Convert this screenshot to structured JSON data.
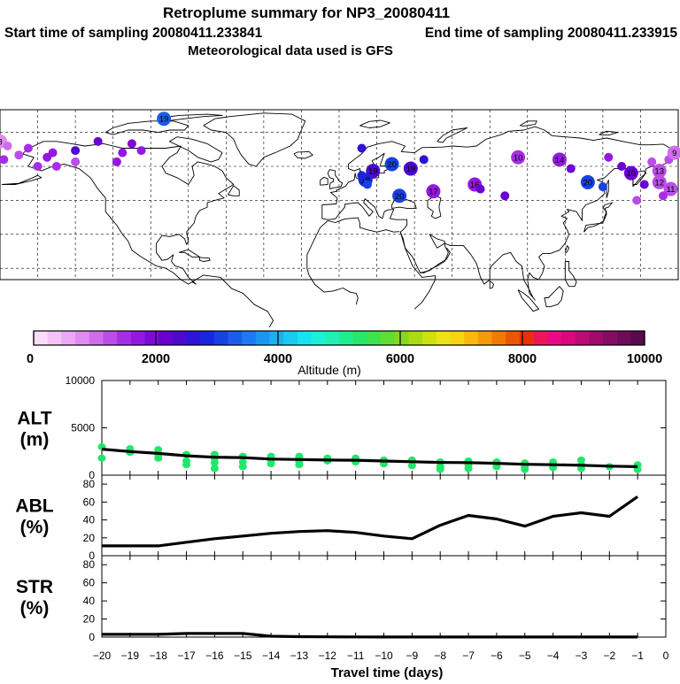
{
  "header": {
    "title": "Retroplume summary for NP3_20080411",
    "start_label": "Start time of sampling 20080411.233841",
    "end_label": "End time of sampling 20080411.233915",
    "met_label": "Meteorological data used is GFS"
  },
  "colors": {
    "text": "#000000",
    "water": "#ffffff",
    "alt_markers": "#22e66a",
    "curve": "#000000"
  },
  "colorbar": {
    "xlabel": "Altitude (m)",
    "ticks": [
      "0",
      "2000",
      "4000",
      "6000",
      "8000",
      "10000"
    ],
    "range": [
      0,
      10000
    ],
    "colors": [
      "#fbdcfb",
      "#f5c2f7",
      "#eba8f3",
      "#df8cf0",
      "#cf6deb",
      "#bb4de8",
      "#a72ee5",
      "#9518e2",
      "#7e0ad8",
      "#6a00d0",
      "#4c0ad0",
      "#2d14d6",
      "#1a26de",
      "#1741e2",
      "#1b5cec",
      "#1d7af2",
      "#1d95f3",
      "#1ab1f2",
      "#18cbf1",
      "#18e3ef",
      "#1cf0d8",
      "#20f0b6",
      "#22ec90",
      "#26e86b",
      "#3ee24c",
      "#60dd32",
      "#86d81e",
      "#aadb14",
      "#cee10f",
      "#ece416",
      "#f8d514",
      "#f8b80e",
      "#f59a09",
      "#f17a06",
      "#ec5704",
      "#e93108",
      "#ec1758",
      "#ea0a85",
      "#d8097e",
      "#be0a76",
      "#a00a6c",
      "#850b63",
      "#6e0b57",
      "#5a094b"
    ]
  },
  "map": {
    "markers": [
      {
        "lon": -93,
        "lat": 81,
        "label": "19",
        "alt": 3200
      },
      {
        "lon": -180,
        "lat": 71,
        "label": "8",
        "alt": 900
      },
      {
        "lon": -170,
        "lat": 65,
        "label": "",
        "alt": 1300
      },
      {
        "lon": -176,
        "lat": 69,
        "label": "",
        "alt": 1100
      },
      {
        "lon": -165,
        "lat": 68,
        "label": "",
        "alt": 1500
      },
      {
        "lon": -155,
        "lat": 64,
        "label": "",
        "alt": 1700
      },
      {
        "lon": -160,
        "lat": 60,
        "label": "",
        "alt": 1400
      },
      {
        "lon": -152,
        "lat": 66,
        "label": "",
        "alt": 1600
      },
      {
        "lon": -150,
        "lat": 60,
        "label": "",
        "alt": 1500
      },
      {
        "lon": -178,
        "lat": 63,
        "label": "",
        "alt": 1400
      },
      {
        "lon": -140,
        "lat": 67,
        "label": "",
        "alt": 2300
      },
      {
        "lon": -128,
        "lat": 71,
        "label": "",
        "alt": 2100
      },
      {
        "lon": -118,
        "lat": 62,
        "label": "",
        "alt": 1700
      },
      {
        "lon": -115,
        "lat": 66,
        "label": "",
        "alt": 1600
      },
      {
        "lon": -140,
        "lat": 62,
        "label": "",
        "alt": 1300
      },
      {
        "lon": -110,
        "lat": 70,
        "label": "",
        "alt": 1900
      },
      {
        "lon": -105,
        "lat": 67,
        "label": "",
        "alt": 1800
      },
      {
        "lon": 12,
        "lat": 68,
        "label": "",
        "alt": 2500
      },
      {
        "lon": 28,
        "lat": 61,
        "label": "20",
        "alt": 3100
      },
      {
        "lon": 18,
        "lat": 58,
        "label": "19",
        "alt": 2300
      },
      {
        "lon": 38,
        "lat": 59,
        "label": "19",
        "alt": 2400
      },
      {
        "lon": 14,
        "lat": 54,
        "label": "18",
        "alt": 2900
      },
      {
        "lon": 15,
        "lat": 52,
        "label": "",
        "alt": 3000
      },
      {
        "lon": 45,
        "lat": 63,
        "label": "",
        "alt": 2600
      },
      {
        "lon": 12,
        "lat": 56,
        "label": "",
        "alt": 2800
      },
      {
        "lon": 32,
        "lat": 47,
        "label": "20",
        "alt": 3000
      },
      {
        "lon": 50,
        "lat": 49,
        "label": "17",
        "alt": 1800
      },
      {
        "lon": 72,
        "lat": 52,
        "label": "16",
        "alt": 1700
      },
      {
        "lon": 75,
        "lat": 50,
        "label": "",
        "alt": 2200
      },
      {
        "lon": 88,
        "lat": 47,
        "label": "",
        "alt": 2100
      },
      {
        "lon": 95,
        "lat": 64,
        "label": "10",
        "alt": 1500
      },
      {
        "lon": 117,
        "lat": 63,
        "label": "14",
        "alt": 1700
      },
      {
        "lon": 123,
        "lat": 59,
        "label": "",
        "alt": 2200
      },
      {
        "lon": 143,
        "lat": 64,
        "label": "",
        "alt": 1600
      },
      {
        "lon": 132,
        "lat": 53,
        "label": "20",
        "alt": 3000
      },
      {
        "lon": 140,
        "lat": 51,
        "label": "",
        "alt": 3100
      },
      {
        "lon": 150,
        "lat": 60,
        "label": "",
        "alt": 2100
      },
      {
        "lon": 155,
        "lat": 57,
        "label": "10",
        "alt": 2200
      },
      {
        "lon": 162,
        "lat": 52,
        "label": "",
        "alt": 2100
      },
      {
        "lon": 166,
        "lat": 62,
        "label": "",
        "alt": 1300
      },
      {
        "lon": 170,
        "lat": 58,
        "label": "13",
        "alt": 1300
      },
      {
        "lon": 175,
        "lat": 63,
        "label": "",
        "alt": 1300
      },
      {
        "lon": 178,
        "lat": 66,
        "label": "9",
        "alt": 1100
      },
      {
        "lon": 170,
        "lat": 53,
        "label": "12",
        "alt": 1200
      },
      {
        "lon": 176,
        "lat": 50,
        "label": "11",
        "alt": 1300
      },
      {
        "lon": 158,
        "lat": 45,
        "label": "",
        "alt": 1200
      },
      {
        "lon": 172,
        "lat": 47,
        "label": "",
        "alt": 1500
      }
    ]
  },
  "chart_data": [
    {
      "name": "ALT",
      "type": "line",
      "ylabel": "ALT\n(m)",
      "ylim": [
        0,
        10000
      ],
      "yticks": [
        0,
        5000,
        10000
      ],
      "x": [
        -20,
        -19,
        -18,
        -17,
        -16,
        -15,
        -14,
        -13,
        -12,
        -11,
        -10,
        -9,
        -8,
        -7,
        -6,
        -5,
        -4,
        -3,
        -2,
        -1
      ],
      "values": [
        2750,
        2500,
        2300,
        2050,
        1900,
        1850,
        1700,
        1650,
        1600,
        1580,
        1500,
        1420,
        1350,
        1330,
        1250,
        1150,
        1100,
        1050,
        950,
        900
      ],
      "scatter": [
        {
          "x": -20,
          "ys": [
            3000,
            1800
          ]
        },
        {
          "x": -19,
          "ys": [
            2800,
            2400
          ]
        },
        {
          "x": -18,
          "ys": [
            2700,
            2200,
            1800
          ]
        },
        {
          "x": -17,
          "ys": [
            2200,
            1500,
            1100
          ]
        },
        {
          "x": -16,
          "ys": [
            2200,
            1800,
            1300,
            700
          ]
        },
        {
          "x": -15,
          "ys": [
            2000,
            1400,
            900
          ]
        },
        {
          "x": -14,
          "ys": [
            2000,
            1600,
            1200
          ]
        },
        {
          "x": -13,
          "ys": [
            2000,
            1800,
            1400,
            1100
          ]
        },
        {
          "x": -12,
          "ys": [
            1800,
            1500
          ]
        },
        {
          "x": -11,
          "ys": [
            1800,
            1400
          ]
        },
        {
          "x": -10,
          "ys": [
            1600,
            1200
          ]
        },
        {
          "x": -9,
          "ys": [
            1600,
            1000
          ]
        },
        {
          "x": -8,
          "ys": [
            1400,
            900,
            600
          ]
        },
        {
          "x": -7,
          "ys": [
            1500,
            1100,
            700
          ]
        },
        {
          "x": -6,
          "ys": [
            1400,
            900
          ]
        },
        {
          "x": -5,
          "ys": [
            1300,
            900,
            600
          ]
        },
        {
          "x": -4,
          "ys": [
            1400,
            800
          ]
        },
        {
          "x": -3,
          "ys": [
            1600,
            1100,
            700
          ]
        },
        {
          "x": -2,
          "ys": [
            900
          ]
        },
        {
          "x": -1,
          "ys": [
            1100,
            600
          ]
        }
      ]
    },
    {
      "name": "ABL",
      "type": "line",
      "ylabel": "ABL\n(%)",
      "ylim": [
        0,
        90
      ],
      "yticks": [
        0,
        20,
        40,
        60,
        80
      ],
      "x": [
        -20,
        -19,
        -18,
        -17,
        -16,
        -15,
        -14,
        -13,
        -12,
        -11,
        -10,
        -9,
        -8,
        -7,
        -6,
        -5,
        -4,
        -3,
        -2,
        -1
      ],
      "values": [
        11,
        11,
        11,
        15,
        19,
        22,
        25,
        27,
        28,
        26,
        22,
        19,
        34,
        45,
        41,
        33,
        44,
        48,
        44,
        66
      ]
    },
    {
      "name": "STR",
      "type": "line",
      "ylabel": "STR\n(%)",
      "ylim": [
        0,
        90
      ],
      "yticks": [
        0,
        20,
        40,
        60,
        80
      ],
      "x": [
        -20,
        -19,
        -18,
        -17,
        -16,
        -15,
        -14,
        -13,
        -12,
        -11,
        -10,
        -9,
        -8,
        -7,
        -6,
        -5,
        -4,
        -3,
        -2,
        -1
      ],
      "values": [
        3,
        3,
        3,
        4,
        4,
        4,
        1,
        0.5,
        0.3,
        0.2,
        0.1,
        0.1,
        0.1,
        0.1,
        0.1,
        0.1,
        0.1,
        0.1,
        0.1,
        0.1
      ]
    }
  ],
  "time_axis": {
    "ticks": [
      -20,
      -19,
      -18,
      -17,
      -16,
      -15,
      -14,
      -13,
      -12,
      -11,
      -10,
      -9,
      -8,
      -7,
      -6,
      -5,
      -4,
      -3,
      -2,
      -1,
      0
    ],
    "tick_labels": [
      "−20",
      "−19",
      "−18",
      "−17",
      "−16",
      "−15",
      "−14",
      "−13",
      "−12",
      "−11",
      "−10",
      "−9",
      "−8",
      "−7",
      "−6",
      "−5",
      "−4",
      "−3",
      "−2",
      "−1",
      "0"
    ],
    "xlabel": "Travel time (days)"
  }
}
